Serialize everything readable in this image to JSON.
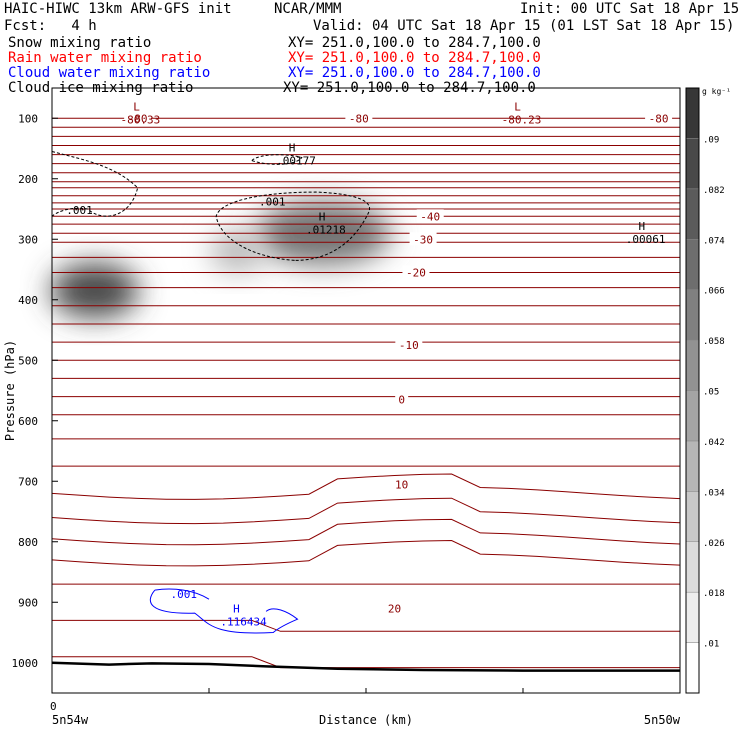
{
  "header": {
    "left1": "HAIC-HIWC 13km ARW-GFS init",
    "center1": "NCAR/MMM",
    "right1": "Init: 00 UTC Sat 18 Apr 15",
    "fcst": "Fcst:   4 h",
    "valid": "Valid: 04 UTC Sat 18 Apr 15 (01 LST Sat 18 Apr 15)"
  },
  "fields": [
    {
      "label": "Snow mixing ratio",
      "xy": "XY= 251.0,100.0 to 284.7,100.0",
      "color": "#000000"
    },
    {
      "label": "Rain water mixing ratio",
      "xy": "XY= 251.0,100.0 to 284.7,100.0",
      "color": "#ff0000"
    },
    {
      "label": "Cloud water mixing ratio",
      "xy": "XY= 251.0,100.0 to 284.7,100.0",
      "color": "#0000ff"
    },
    {
      "label": "Cloud ice mixing ratio",
      "xy": "XY= 251.0,100.0 to 284.7,100.0",
      "color": "#000000"
    }
  ],
  "chart_data": {
    "type": "contour-cross-section",
    "xlabel": "Distance (km)",
    "ylabel": "Pressure (hPa)",
    "yticks": [
      100,
      200,
      300,
      400,
      500,
      600,
      700,
      800,
      900,
      1000
    ],
    "ylim": [
      50,
      1050
    ],
    "xlim": [
      0,
      440
    ],
    "x_zero_label": "0",
    "left_end_label": "5n54w",
    "right_end_label": "5n50w",
    "colorbar_unit": "g kg⁻¹",
    "colorbar_levels": [
      ".01",
      ".018",
      ".026",
      ".034",
      ".042",
      ".05",
      ".058",
      ".066",
      ".074",
      ".082",
      ".09"
    ],
    "theta_contour_levels": [
      100,
      115,
      130,
      145,
      160,
      175,
      190,
      205,
      215,
      228,
      240,
      250,
      262,
      275,
      290,
      305,
      330,
      355,
      380,
      410,
      440,
      470,
      500,
      530,
      560,
      590,
      630,
      675,
      720,
      760,
      795,
      830,
      870,
      930,
      990
    ],
    "temperature_labels": [
      {
        "text": "-80",
        "x": 60,
        "p": 100
      },
      {
        "text": "-80",
        "x": 215,
        "p": 100
      },
      {
        "text": "-80",
        "x": 425,
        "p": 100
      },
      {
        "text": "-40",
        "x": 265,
        "p": 262
      },
      {
        "text": "-30",
        "x": 260,
        "p": 300
      },
      {
        "text": "-20",
        "x": 255,
        "p": 355
      },
      {
        "text": "-10",
        "x": 250,
        "p": 475
      },
      {
        "text": "0",
        "x": 245,
        "p": 565
      },
      {
        "text": "10",
        "x": 245,
        "p": 705
      },
      {
        "text": "20",
        "x": 240,
        "p": 910
      }
    ],
    "extrema_labels": [
      {
        "letter": "L",
        "value": "-80.33",
        "x": 48,
        "p": 100,
        "color": "#8b0000"
      },
      {
        "letter": "L",
        "value": "-80.23",
        "x": 315,
        "p": 100,
        "color": "#8b0000"
      },
      {
        "letter": "H",
        "value": ".00177",
        "x": 157,
        "p": 168,
        "color": "#000000"
      },
      {
        "letter": "H",
        "value": ".01218",
        "x": 178,
        "p": 282,
        "color": "#000000"
      },
      {
        "letter": "H",
        "value": ".00061",
        "x": 402,
        "p": 298,
        "color": "#000000"
      },
      {
        "letter": "H",
        "value": ".116434",
        "x": 118,
        "p": 930,
        "color": "#0000ff"
      }
    ],
    "contour_value_labels": [
      {
        "text": ".001",
        "x": 10,
        "p": 252,
        "color": "#000000"
      },
      {
        "text": ".001",
        "x": 145,
        "p": 238,
        "color": "#000000"
      },
      {
        "text": ".001",
        "x": 83,
        "p": 886,
        "color": "#0000ff"
      }
    ],
    "snow_blobs": [
      {
        "x": 30,
        "p": 385,
        "rx": 44,
        "rp": 45,
        "intensity": 0.078
      },
      {
        "x": 190,
        "p": 290,
        "rx": 68,
        "rp": 52,
        "intensity": 0.06
      },
      {
        "x": 130,
        "p": 320,
        "rx": 28,
        "rp": 35,
        "intensity": 0.03
      }
    ]
  }
}
